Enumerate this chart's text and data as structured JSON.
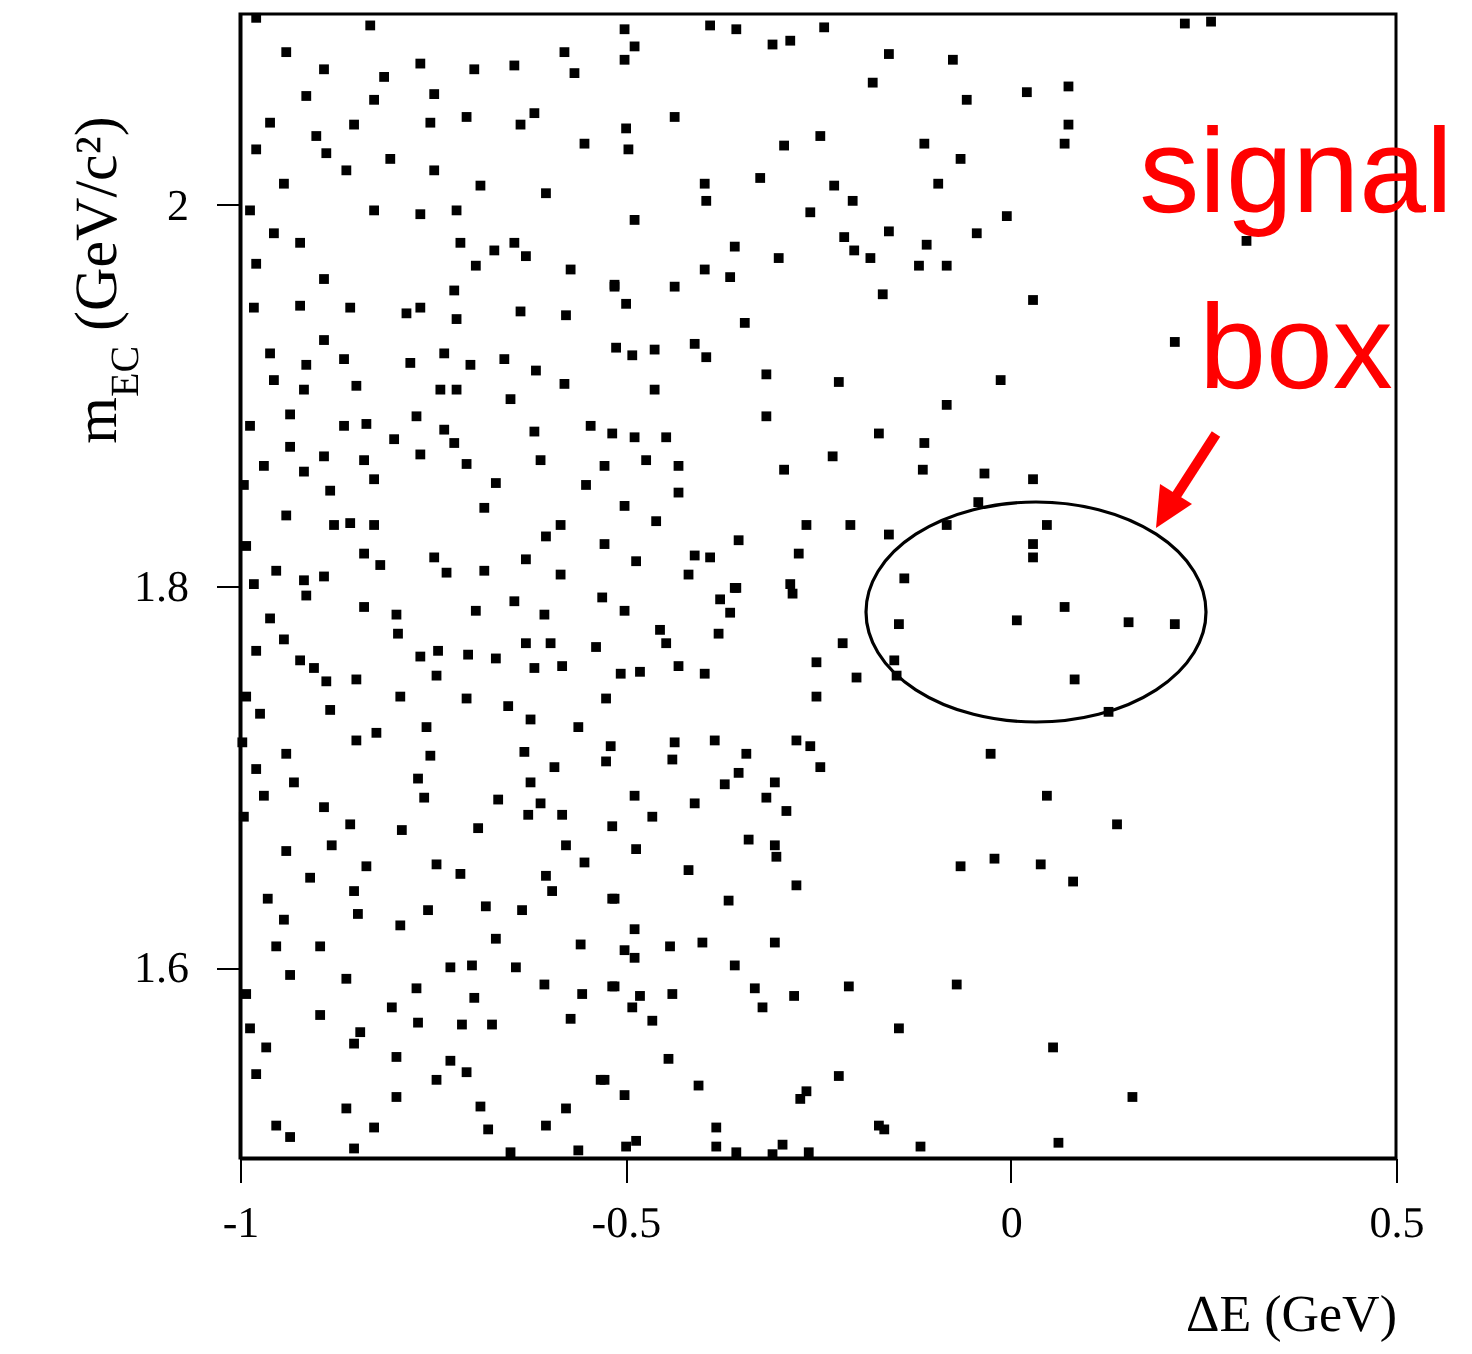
{
  "chart_data": {
    "type": "scatter",
    "xlabel": "ΔE (GeV)",
    "ylabel": "m$_{EC}$ (GeV/c²)",
    "annotations": [
      "signal box"
    ],
    "xlim": [
      -1,
      0.5
    ],
    "ylim": [
      1.5,
      2.1
    ],
    "xticks": [
      -1,
      -0.5,
      0,
      0.5
    ],
    "yticks": [
      1.6,
      1.8,
      2
    ],
    "marker": "square",
    "grid": false,
    "series": [
      {
        "color": "#000000",
        "x": [
          -0.979,
          -0.831,
          -0.766,
          -0.94,
          -0.891,
          -0.813,
          -0.696,
          -0.644,
          -0.579,
          -0.566,
          -0.914,
          -0.826,
          -0.748,
          -0.618,
          -0.961,
          -0.852,
          -0.753,
          -0.706,
          -0.636,
          -0.979,
          -0.901,
          -0.888,
          -0.805,
          -0.748,
          -0.553,
          -0.943,
          -0.862,
          -0.688,
          -0.603,
          -0.987,
          -0.826,
          -0.766,
          -0.719,
          -0.956,
          -0.922,
          -0.714,
          -0.67,
          -0.644,
          -0.629,
          -0.694,
          -0.979,
          -0.891,
          -0.722,
          -0.571,
          -0.514,
          -0.982,
          -0.922,
          -0.857,
          -0.784,
          -0.766,
          -0.719,
          -0.636,
          -0.577,
          -0.961,
          -0.891,
          -0.914,
          -0.865,
          -0.779,
          -0.735,
          -0.701,
          -0.657,
          -0.616,
          -0.956,
          -0.917,
          -0.849,
          -0.74,
          -0.719,
          -0.649,
          -0.579,
          -0.987,
          -0.935,
          -0.865,
          -0.836,
          -0.771,
          -0.735,
          -0.618,
          -0.545,
          -0.935,
          -0.891,
          -0.8,
          -0.766,
          -0.722,
          -0.706,
          -0.61,
          -0.969,
          -0.917,
          -0.839,
          -0.826,
          -0.995,
          -0.883,
          -0.668,
          -0.527,
          -0.551,
          -0.94,
          -0.878,
          -0.857,
          -0.826,
          -0.683,
          -0.603,
          -0.584,
          -0.992,
          -0.839,
          -0.748,
          -0.629,
          -0.527,
          -0.953,
          -0.917,
          -0.891,
          -0.818,
          -0.732,
          -0.683,
          -0.584,
          -0.501,
          -0.39,
          -0.356,
          -0.309,
          -0.286,
          -0.242,
          -0.488,
          -0.501,
          -0.158,
          -0.075,
          -0.179,
          -0.057,
          -0.436,
          -0.499,
          -0.496,
          -0.247,
          -0.294,
          -0.112,
          -0.065,
          -0.397,
          -0.325,
          -0.229,
          -0.395,
          -0.205,
          -0.094,
          -0.488,
          -0.26,
          -0.158,
          -0.044,
          -0.358,
          -0.301,
          -0.216,
          -0.203,
          -0.182,
          -0.119,
          -0.083,
          -0.109,
          -0.397,
          -0.436,
          -0.364,
          -0.514,
          -0.499,
          -0.166,
          -0.345,
          -0.512,
          -0.491,
          -0.462,
          -0.41,
          -0.395,
          -0.317,
          -0.462,
          -0.223,
          -0.083,
          -0.317,
          -0.517,
          -0.488,
          -0.447,
          -0.171,
          -0.112,
          -0.473,
          -0.431,
          -0.294,
          -0.231,
          -0.114,
          -0.034,
          -0.431,
          -0.501,
          -0.46,
          -0.353,
          -0.265,
          -0.208,
          -0.158,
          -0.083,
          -0.042,
          -0.486,
          -0.41,
          -0.39,
          -0.418,
          -0.275,
          -0.286,
          -0.358,
          -0.138,
          0.226,
          0.26,
          0.021,
          0.075,
          0.075,
          0.07,
          -0.005,
          0.306,
          0.029,
          0.213,
          -0.013,
          0.029,
          0.047,
          0.029,
          0.029,
          -0.982,
          -0.914,
          -0.839,
          -0.797,
          -0.961,
          -0.795,
          -0.694,
          -0.644,
          -0.605,
          -0.53,
          -0.943,
          -0.979,
          -0.766,
          -0.743,
          -0.704,
          -0.629,
          -0.597,
          -0.538,
          -0.922,
          -0.904,
          -0.888,
          -0.849,
          -0.745,
          -0.668,
          -0.618,
          -0.582,
          -0.992,
          -0.974,
          -0.883,
          -0.792,
          -0.706,
          -0.652,
          -0.623,
          -0.525,
          -0.758,
          -0.849,
          -0.823,
          -0.997,
          -0.94,
          -0.753,
          -0.631,
          -0.592,
          -0.561,
          -0.525,
          -0.979,
          -0.93,
          -0.769,
          -0.623,
          -0.969,
          -0.891,
          -0.761,
          -0.665,
          -0.61,
          -0.995,
          -0.857,
          -0.79,
          -0.691,
          -0.626,
          -0.582,
          -0.94,
          -0.881,
          -0.577,
          -0.909,
          -0.836,
          -0.745,
          -0.714,
          -0.603,
          -0.553,
          -0.964,
          -0.852,
          -0.595,
          -0.514,
          -0.943,
          -0.847,
          -0.792,
          -0.756,
          -0.681,
          -0.634,
          -0.668,
          -0.558,
          -0.953,
          -0.896,
          -0.727,
          -0.699,
          -0.642,
          -0.605,
          -0.514,
          -0.935,
          -0.862,
          -0.771,
          -0.992,
          -0.896,
          -0.803,
          -0.696,
          -0.556,
          -0.987,
          -0.844,
          -0.769,
          -0.712,
          -0.673,
          -0.571,
          -0.966,
          -0.852,
          -0.797,
          -0.727,
          -0.706,
          -0.979,
          -0.745,
          -0.532,
          -0.797,
          -0.862,
          -0.688,
          -0.577,
          -0.953,
          -0.826,
          -0.678,
          -0.603,
          -0.935,
          -0.852,
          -0.649,
          -0.561,
          -0.501,
          -0.356,
          -0.377,
          -0.364,
          -0.379,
          -0.283,
          -0.455,
          -0.447,
          -0.218,
          -0.145,
          -0.431,
          -0.397,
          -0.252,
          -0.2,
          -0.151,
          -0.148,
          -0.506,
          -0.481,
          -0.252,
          -0.519,
          -0.436,
          -0.384,
          -0.343,
          -0.278,
          -0.26,
          -0.247,
          -0.439,
          -0.353,
          -0.371,
          -0.306,
          -0.317,
          -0.291,
          -0.488,
          -0.465,
          -0.41,
          -0.026,
          -0.517,
          -0.34,
          -0.306,
          -0.304,
          -0.486,
          -0.418,
          -0.065,
          -0.021,
          -0.278,
          -0.517,
          -0.366,
          -0.488,
          -0.501,
          -0.488,
          -0.442,
          -0.4,
          -0.306,
          -0.358,
          -0.517,
          -0.481,
          -0.491,
          -0.439,
          -0.465,
          -0.332,
          -0.322,
          -0.281,
          -0.21,
          -0.07,
          -0.145,
          -0.444,
          -0.405,
          -0.527,
          -0.501,
          -0.223,
          -0.273,
          -0.265,
          -0.171,
          -0.164,
          -0.382,
          -0.499,
          -0.486,
          -0.382,
          -0.356,
          -0.309,
          -0.296,
          -0.262,
          -0.117,
          0.008,
          0.07,
          0.153,
          0.213,
          0.083,
          0.127,
          0.047,
          0.138,
          0.039,
          0.081,
          0.055,
          0.158,
          0.062
        ],
        "values": [
          2.098,
          2.094,
          2.074,
          2.08,
          2.071,
          2.067,
          2.071,
          2.073,
          2.08,
          2.069,
          2.057,
          2.055,
          2.058,
          2.048,
          2.043,
          2.042,
          2.043,
          2.046,
          2.042,
          2.029,
          2.036,
          2.027,
          2.024,
          2.018,
          2.032,
          2.011,
          2.018,
          2.01,
          2.006,
          1.997,
          1.997,
          1.995,
          1.997,
          1.985,
          1.98,
          1.98,
          1.976,
          1.98,
          1.973,
          1.968,
          1.969,
          1.961,
          1.955,
          1.966,
          1.958,
          1.946,
          1.947,
          1.946,
          1.943,
          1.946,
          1.94,
          1.944,
          1.942,
          1.922,
          1.929,
          1.916,
          1.919,
          1.917,
          1.922,
          1.916,
          1.919,
          1.913,
          1.908,
          1.903,
          1.905,
          1.903,
          1.903,
          1.898,
          1.906,
          1.884,
          1.89,
          1.884,
          1.885,
          1.889,
          1.882,
          1.881,
          1.884,
          1.873,
          1.868,
          1.877,
          1.869,
          1.875,
          1.864,
          1.866,
          1.863,
          1.86,
          1.866,
          1.856,
          1.853,
          1.85,
          1.854,
          1.863,
          1.853,
          1.837,
          1.832,
          1.833,
          1.832,
          1.841,
          1.826,
          1.832,
          1.821,
          1.817,
          1.815,
          1.814,
          1.822,
          1.808,
          1.803,
          1.805,
          1.811,
          1.807,
          1.808,
          1.806,
          2.092,
          2.094,
          2.092,
          2.084,
          2.086,
          2.093,
          2.083,
          2.076,
          2.079,
          2.076,
          2.064,
          2.055,
          2.046,
          2.04,
          2.029,
          2.036,
          2.031,
          2.032,
          2.024,
          2.011,
          2.014,
          2.01,
          2.002,
          2.002,
          2.011,
          1.992,
          1.996,
          1.986,
          1.985,
          1.978,
          1.972,
          1.983,
          1.976,
          1.972,
          1.968,
          1.968,
          1.979,
          1.966,
          1.957,
          1.962,
          1.957,
          1.948,
          1.953,
          1.938,
          1.925,
          1.921,
          1.924,
          1.927,
          1.92,
          1.911,
          1.903,
          1.907,
          1.895,
          1.889,
          1.88,
          1.878,
          1.878,
          1.88,
          1.875,
          1.866,
          1.863,
          1.861,
          1.868,
          1.861,
          1.859,
          1.849,
          1.842,
          1.834,
          1.824,
          1.832,
          1.832,
          1.827,
          1.832,
          1.844,
          1.813,
          1.816,
          1.815,
          1.806,
          1.817,
          1.801,
          1.799,
          1.804,
          2.095,
          2.096,
          2.059,
          2.062,
          2.042,
          2.032,
          1.994,
          1.981,
          1.95,
          1.928,
          1.908,
          1.856,
          1.832,
          1.822,
          1.815,
          1.801,
          1.795,
          1.789,
          1.785,
          1.783,
          1.775,
          1.787,
          1.792,
          1.785,
          1.794,
          1.772,
          1.766,
          1.763,
          1.766,
          1.764,
          1.77,
          1.77,
          1.768,
          1.761,
          1.757,
          1.75,
          1.751,
          1.753,
          1.762,
          1.757,
          1.758,
          1.742,
          1.733,
          1.735,
          1.742,
          1.741,
          1.737,
          1.73,
          1.741,
          1.726,
          1.719,
          1.723,
          1.718,
          1.712,
          1.711,
          1.713,
          1.705,
          1.726,
          1.708,
          1.704,
          1.697,
          1.699,
          1.697,
          1.69,
          1.684,
          1.689,
          1.688,
          1.686,
          1.679,
          1.675,
          1.672,
          1.673,
          1.68,
          1.68,
          1.661,
          1.664,
          1.664,
          1.647,
          1.653,
          1.654,
          1.649,
          1.648,
          1.655,
          1.636,
          1.64,
          1.64,
          1.636,
          1.625,
          1.628,
          1.622,
          1.63,
          1.632,
          1.63,
          1.615,
          1.612,
          1.611,
          1.611,
          1.6,
          1.601,
          1.6,
          1.591,
          1.59,
          1.596,
          1.594,
          1.589,
          1.586,
          1.575,
          1.579,
          1.584,
          1.586,
          1.568,
          1.566,
          1.571,
          1.57,
          1.57,
          1.573,
          1.558,
          1.56,
          1.553,
          1.551,
          1.545,
          1.544,
          1.541,
          1.541,
          1.532,
          1.526,
          1.527,
          1.526,
          1.517,
          1.516,
          1.515,
          1.517,
          1.511,
          1.505,
          1.503,
          1.504,
          1.787,
          1.799,
          1.793,
          1.786,
          1.775,
          1.796,
          1.777,
          1.77,
          1.77,
          1.78,
          1.758,
          1.754,
          1.76,
          1.752,
          1.761,
          1.753,
          1.754,
          1.755,
          1.742,
          1.716,
          1.718,
          1.719,
          1.712,
          1.719,
          1.716,
          1.705,
          1.709,
          1.702,
          1.696,
          1.697,
          1.689,
          1.682,
          1.69,
          1.679,
          1.686,
          1.712,
          1.674,
          1.667,
          1.664,
          1.658,
          1.662,
          1.651,
          1.653,
          1.657,
          1.643,
          1.636,
          1.635,
          1.62,
          1.609,
          1.605,
          1.611,
          1.613,
          1.613,
          1.601,
          1.59,
          1.585,
          1.579,
          1.586,
          1.572,
          1.589,
          1.579,
          1.585,
          1.59,
          1.591,
          1.568,
          1.552,
          1.538,
          1.541,
          1.533,
          1.543,
          1.531,
          1.535,
          1.517,
          1.515,
          1.516,
          1.506,
          1.509,
          1.506,
          1.503,
          1.502,
          1.507,
          1.503,
          1.506,
          1.782,
          1.789,
          1.781,
          1.78,
          1.751,
          1.734,
          1.69,
          1.675,
          1.654,
          1.645,
          1.558,
          1.532,
          1.508
        ]
      }
    ]
  }
}
